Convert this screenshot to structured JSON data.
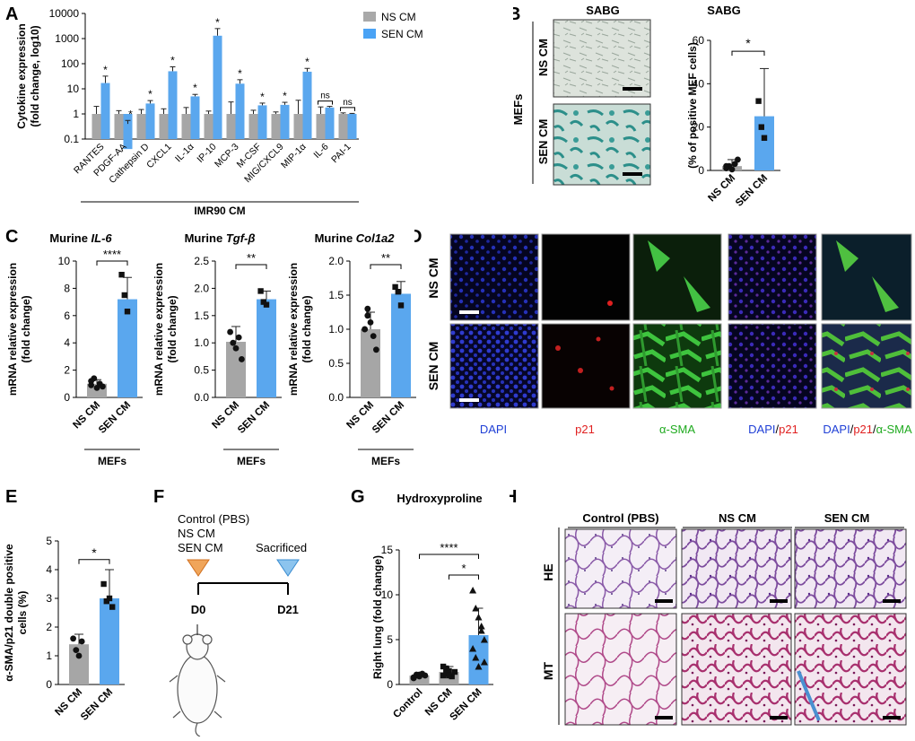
{
  "panels": {
    "A": "A",
    "B": "B",
    "C": "C",
    "D": "D",
    "E": "E",
    "F": "F",
    "G": "G",
    "H": "H"
  },
  "colors": {
    "ns": "#a6a6a6",
    "sen": "#5aa7ee",
    "ns_legend": "#a9a9a9",
    "sen_legend": "#4aa3f5",
    "dapi_text": "#1f3fd6",
    "p21_text": "#e02020",
    "sma_text": "#1faa1f"
  },
  "chart_data": [
    {
      "id": "A",
      "type": "bar",
      "title": "",
      "ylabel": [
        "Cytokine expression",
        "(fold change, log10)"
      ],
      "xlabel": "IMR90 CM",
      "y_scale": "log10",
      "ylim": [
        0.1,
        10000
      ],
      "yticks": [
        "0.1",
        "1",
        "10",
        "100",
        "1000",
        "10000"
      ],
      "legend_position": "top-right",
      "categories": [
        "RANTES",
        "PDGF-AA",
        "Cathepsin D",
        "CXCL1",
        "IL-1α",
        "IP-10",
        "MCP-3",
        "M-CSF",
        "MIG/CXCL9",
        "MIP-1α",
        "IL-6",
        "PAI-1"
      ],
      "series": [
        {
          "name": "NS CM",
          "values": [
            1,
            1,
            1,
            1,
            1,
            1,
            1,
            1,
            1,
            1,
            1,
            1
          ],
          "err_hi": [
            2,
            1.35,
            1.5,
            1.6,
            1.8,
            1.3,
            3,
            1.4,
            1.2,
            3.5,
            1.9,
            1.1
          ]
        },
        {
          "name": "SEN CM",
          "values": [
            17,
            0.4,
            2.6,
            50,
            5,
            1300,
            16,
            2.2,
            2.3,
            48,
            1.8,
            1.0
          ],
          "err_hi": [
            32,
            0.55,
            3.4,
            75,
            6,
            2500,
            23,
            2.7,
            2.9,
            65,
            2.0,
            1.05
          ]
        }
      ],
      "significance": [
        "*",
        "*",
        "*",
        "*",
        "*",
        "*",
        "*",
        "*",
        "*",
        "*",
        "ns",
        "ns"
      ]
    },
    {
      "id": "B",
      "type": "bar",
      "title": "SABG",
      "ylabel": "(% of positive MEF cells)",
      "ylim": [
        0,
        60
      ],
      "yticks": [
        "0",
        "20",
        "40",
        "60"
      ],
      "categories": [
        "NS CM",
        "SEN CM"
      ],
      "values": [
        2,
        25
      ],
      "err_hi": [
        5,
        47
      ],
      "points": [
        [
          1,
          2,
          0.5,
          3,
          5,
          2
        ],
        [
          32,
          20,
          15
        ]
      ],
      "significance": "*"
    },
    {
      "id": "C1",
      "type": "bar",
      "title": "Murine IL-6",
      "title_plain": "Murine ",
      "title_ital": "IL-6",
      "ylabel": [
        "mRNA relative expression",
        "(fold change)"
      ],
      "ylim": [
        0,
        10
      ],
      "yticks": [
        "0",
        "2",
        "4",
        "6",
        "8",
        "10"
      ],
      "categories": [
        "NS CM",
        "SEN CM"
      ],
      "values": [
        1.0,
        7.2
      ],
      "err_hi": [
        1.3,
        8.8
      ],
      "points": [
        [
          0.9,
          1.4,
          0.7,
          1.0,
          0.8,
          1.2
        ],
        [
          9.0,
          7.5,
          6.3
        ]
      ],
      "significance": "****",
      "group_label": "MEFs"
    },
    {
      "id": "C2",
      "type": "bar",
      "title": "Murine Tgf-β",
      "title_plain": "Murine ",
      "title_ital": "Tgf-β",
      "ylabel": [
        "mRNA relative expression",
        "(fold change)"
      ],
      "ylim": [
        0,
        2.5
      ],
      "yticks": [
        "0.0",
        "0.5",
        "1.0",
        "1.5",
        "2.0",
        "2.5"
      ],
      "categories": [
        "NS CM",
        "SEN CM"
      ],
      "values": [
        1.02,
        1.8
      ],
      "err_hi": [
        1.3,
        1.95
      ],
      "points": [
        [
          1.2,
          1.0,
          0.9,
          1.1,
          0.7
        ],
        [
          1.95,
          1.75,
          1.7
        ]
      ],
      "significance": "**",
      "group_label": "MEFs"
    },
    {
      "id": "C3",
      "type": "bar",
      "title": "Murine Col1a2",
      "title_plain": "Murine ",
      "title_ital": "Col1a2",
      "ylabel": [
        "mRNA relative expression",
        "(fold change)"
      ],
      "ylim": [
        0,
        2.0
      ],
      "yticks": [
        "0.0",
        "0.5",
        "1.0",
        "1.5",
        "2.0"
      ],
      "categories": [
        "NS CM",
        "SEN CM"
      ],
      "values": [
        1.0,
        1.52
      ],
      "err_hi": [
        1.25,
        1.7
      ],
      "points": [
        [
          1.0,
          1.2,
          1.1,
          0.9,
          0.7,
          1.0,
          1.3
        ],
        [
          1.62,
          1.55,
          1.35
        ]
      ],
      "significance": "**",
      "group_label": "MEFs"
    },
    {
      "id": "E",
      "type": "bar",
      "title": "",
      "ylabel": [
        "α-SMA/p21 double positive",
        "cells (%)"
      ],
      "ylim": [
        0,
        5
      ],
      "yticks": [
        "0",
        "1",
        "2",
        "3",
        "4",
        "5"
      ],
      "categories": [
        "NS CM",
        "SEN CM"
      ],
      "values": [
        1.4,
        3.0
      ],
      "err_hi": [
        1.75,
        4.0
      ],
      "points": [
        [
          1.6,
          1.2,
          1.0,
          1.5
        ],
        [
          3.5,
          2.9,
          3.0,
          2.7
        ]
      ],
      "significance": "*"
    },
    {
      "id": "G",
      "type": "bar",
      "title": "Hydroxyproline",
      "ylabel": "Right lung (fold change)",
      "ylim": [
        0,
        15
      ],
      "yticks": [
        "0",
        "5",
        "10",
        "15"
      ],
      "categories": [
        "Control",
        "NS CM",
        "SEN CM"
      ],
      "values": [
        1.0,
        1.4,
        5.5
      ],
      "err_hi": [
        1.3,
        2.0,
        8.5
      ],
      "points": [
        [
          0.8,
          1.1,
          0.9,
          1.2,
          1.0,
          0.7,
          1.0,
          1.1
        ],
        [
          1.0,
          1.8,
          1.5,
          0.9,
          1.4,
          2.0,
          1.2,
          1.0
        ],
        [
          10.5,
          8.5,
          7.5,
          6.0,
          5.0,
          4.0,
          3.0,
          2.0,
          6.5,
          2.5
        ]
      ],
      "significance": [
        {
          "from": 0,
          "to": 2,
          "label": "****"
        },
        {
          "from": 1,
          "to": 2,
          "label": "*"
        }
      ]
    }
  ],
  "panel_B": {
    "title": "SABG",
    "side_label": "MEFs",
    "rows": [
      "NS CM",
      "SEN CM"
    ]
  },
  "panel_D": {
    "rows": [
      "NS CM",
      "SEN CM"
    ],
    "channel_labels": {
      "dapi": "DAPI",
      "p21": "p21",
      "sma": "α-SMA",
      "merge1_a": "DAPI",
      "merge1_sep": "/",
      "merge1_b": "p21",
      "merge2_a": "DAPI",
      "merge2_sep1": "/",
      "merge2_b": "p21",
      "merge2_sep2": "/",
      "merge2_c": "α-SMA"
    }
  },
  "panel_F": {
    "groups": [
      "Control (PBS)",
      "NS CM",
      "SEN CM"
    ],
    "sacrificed": "Sacrificed",
    "d0": "D0",
    "d21": "D21"
  },
  "panel_H": {
    "columns": [
      "Control (PBS)",
      "NS CM",
      "SEN CM"
    ],
    "rows": [
      "HE",
      "MT"
    ]
  }
}
